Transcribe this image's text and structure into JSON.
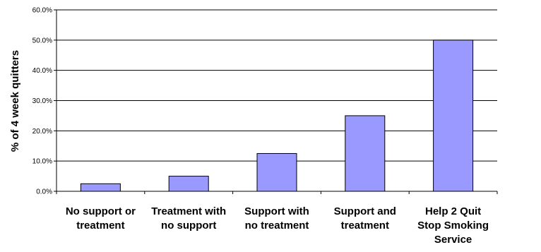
{
  "chart_data": {
    "type": "bar",
    "ylabel": "% of 4 week quitters",
    "xlabel": "",
    "categories": [
      [
        "No support or",
        "treatment"
      ],
      [
        "Treatment with",
        "no support"
      ],
      [
        "Support with",
        "no treatment"
      ],
      [
        "Support and",
        "treatment"
      ],
      [
        "Help 2 Quit",
        "Stop Smoking",
        "Service"
      ]
    ],
    "values": [
      2.5,
      5.0,
      12.5,
      25.0,
      50.0
    ],
    "ylim": [
      0,
      60
    ],
    "yticks": [
      "0.0%",
      "10.0%",
      "20.0%",
      "30.0%",
      "40.0%",
      "50.0%",
      "60.0%"
    ],
    "grid": true,
    "colors": {
      "bar": "#9999FF",
      "bar_stroke": "#000000",
      "grid": "#000000"
    }
  }
}
